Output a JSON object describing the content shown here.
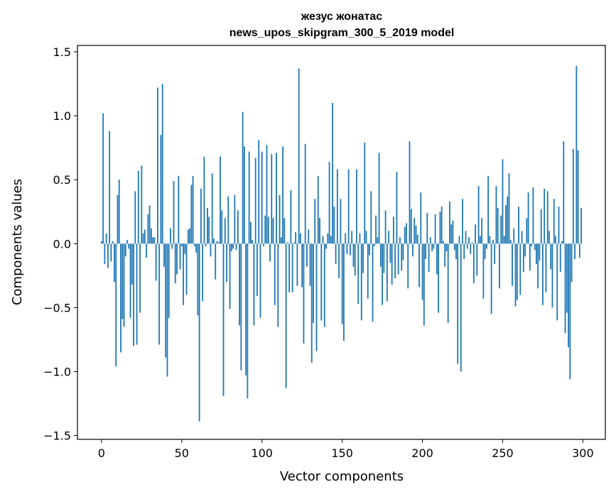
{
  "chart_data": {
    "type": "bar",
    "title": "жезус жонатас",
    "subtitle": "news_upos_skipgram_300_5_2019 model",
    "xlabel": "Vector components",
    "ylabel": "Components values",
    "xlim": [
      -15,
      314
    ],
    "ylim": [
      -1.53,
      1.55
    ],
    "x_ticks": [
      0,
      50,
      100,
      150,
      200,
      250,
      300
    ],
    "x_tick_labels": [
      "0",
      "50",
      "100",
      "150",
      "200",
      "250",
      "300"
    ],
    "y_ticks": [
      1.5,
      1.0,
      0.5,
      0.0,
      -0.5,
      -1.0,
      -1.5
    ],
    "y_tick_labels": [
      "1.5",
      "1.0",
      "0.5",
      "0.0",
      "−0.5",
      "−1.0",
      "−1.5"
    ],
    "grid": false,
    "bar_color": "#1f77b4",
    "values": [
      0.02,
      1.02,
      -0.16,
      0.08,
      -0.19,
      0.88,
      -0.14,
      0.02,
      -0.3,
      -0.96,
      0.38,
      0.5,
      -0.85,
      -0.59,
      -0.65,
      -0.1,
      0.03,
      -0.04,
      -0.58,
      -0.32,
      -0.8,
      0.41,
      -0.79,
      0.57,
      -0.54,
      0.61,
      0.08,
      0.11,
      -0.11,
      0.23,
      0.3,
      0.12,
      0.05,
      0.05,
      -0.29,
      1.22,
      -0.79,
      0.85,
      1.25,
      -0.18,
      -0.89,
      -1.04,
      -0.58,
      0.12,
      -0.04,
      0.49,
      -0.31,
      -0.24,
      0.53,
      -0.2,
      -0.02,
      -0.48,
      -0.08,
      -0.4,
      0.11,
      0.12,
      0.46,
      0.53,
      -0.02,
      -0.07,
      -0.56,
      -1.39,
      0.43,
      -0.45,
      0.68,
      -0.02,
      0.28,
      0.21,
      -0.1,
      0.55,
      0.04,
      -0.28,
      0.02,
      0.01,
      0.68,
      0.26,
      -1.19,
      0.2,
      -0.3,
      0.37,
      -0.51,
      -0.06,
      -0.04,
      0.38,
      -0.05,
      0.26,
      -0.64,
      -0.99,
      1.03,
      0.76,
      -1.03,
      -1.21,
      0.72,
      0.17,
      0.03,
      -0.64,
      0.67,
      -0.41,
      0.81,
      -0.58,
      0.72,
      -0.02,
      0.22,
      0.77,
      0.21,
      -0.14,
      0.7,
      0.2,
      -0.48,
      0.71,
      -0.65,
      0.38,
      0.05,
      0.76,
      0.2,
      -1.13,
      0.01,
      -0.38,
      0.42,
      -0.38,
      0.01,
      0.09,
      -0.33,
      1.37,
      0.08,
      -0.34,
      -0.78,
      0.78,
      -0.18,
      0.11,
      -0.33,
      -0.93,
      -0.62,
      0.35,
      -0.84,
      0.53,
      0.2,
      -0.6,
      0.06,
      -0.65,
      -0.04,
      0.08,
      0.64,
      0.06,
      1.1,
      0.29,
      -0.16,
      0.58,
      -0.27,
      0.35,
      -0.63,
      -0.76,
      0.08,
      -0.08,
      0.58,
      -0.09,
      0.1,
      -0.18,
      -0.25,
      0.58,
      -0.47,
      0.08,
      -0.6,
      -0.23,
      0.79,
      0.1,
      -0.43,
      -0.09,
      0.41,
      -0.61,
      -0.02,
      0.22,
      0.05,
      0.71,
      -0.18,
      -0.48,
      -0.23,
      0.26,
      -0.45,
      0.1,
      -0.15,
      -0.32,
      0.21,
      -0.27,
      0.56,
      -0.24,
      0.05,
      -0.21,
      -0.13,
      0.13,
      0.16,
      -0.35,
      0.8,
      0.27,
      -0.1,
      0.2,
      0.14,
      0.07,
      -0.34,
      0.4,
      -0.44,
      -0.64,
      -0.12,
      0.24,
      -0.22,
      0.05,
      -0.06,
      -0.04,
      0.23,
      -0.24,
      -0.54,
      0.25,
      0.29,
      0.02,
      -0.18,
      -0.06,
      -0.62,
      0.33,
      0.15,
      0.18,
      -0.05,
      -0.12,
      -0.94,
      0.06,
      -1.0,
      0.35,
      -0.12,
      0.1,
      -0.04,
      0.05,
      -0.08,
      0.01,
      -0.31,
      0.15,
      -0.25,
      0.45,
      0.06,
      0.2,
      -0.43,
      -0.12,
      -0.04,
      0.53,
      0.06,
      -0.55,
      0.03,
      -0.16,
      0.45,
      0.28,
      -0.35,
      0.22,
      0.66,
      0.06,
      0.3,
      0.37,
      0.55,
      0.03,
      -0.33,
      0.12,
      -0.49,
      -0.44,
      0.29,
      -0.4,
      0.1,
      -0.22,
      -0.1,
      0.2,
      0.4,
      -0.21,
      -0.02,
      0.44,
      -0.05,
      -0.16,
      -0.35,
      -0.13,
      0.27,
      -0.48,
      0.43,
      -0.38,
      0.41,
      0.1,
      -0.2,
      -0.5,
      0.35,
      0.06,
      -0.6,
      0.29,
      -0.22,
      0.02,
      0.8,
      -0.7,
      -0.54,
      -0.81,
      -1.06,
      -0.3,
      0.74,
      -0.12,
      1.39,
      0.73,
      -0.11,
      0.28
    ]
  }
}
